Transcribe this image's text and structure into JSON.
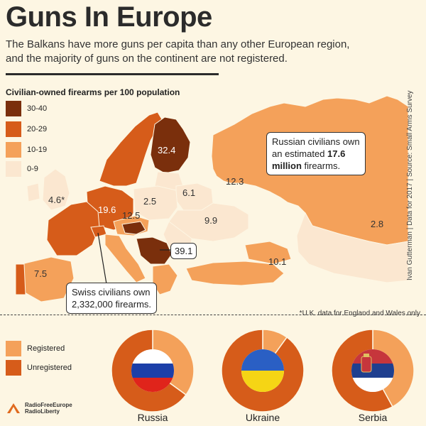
{
  "header": {
    "title": "Guns In Europe",
    "subtitle_line1": "The Balkans have more guns per capita than any other European region,",
    "subtitle_line2": "and the majority of guns on the continent are not registered."
  },
  "legend": {
    "title": "Civilian-owned firearms per 100 population",
    "items": [
      {
        "label": "30-40",
        "color": "#7a2f0c"
      },
      {
        "label": "20-29",
        "color": "#d65c1a"
      },
      {
        "label": "10-19",
        "color": "#f4a15a"
      },
      {
        "label": "0-9",
        "color": "#fbe7d0"
      }
    ]
  },
  "map_values": {
    "finland": "32.4",
    "russia": "12.3",
    "uk": "4.6*",
    "germany": "19.6",
    "poland": "2.5",
    "belarus": "6.1",
    "austria": "12.5",
    "ukraine": "9.9",
    "serbia": "39.1",
    "turkey": "10.1",
    "portugal": "7.5",
    "kazakhstan": "2.8"
  },
  "callouts": {
    "russia_pre": "Russian civilians own",
    "russia_mid_pre": "an estimated ",
    "russia_bold1": "17.6",
    "russia_bold2": "million",
    "russia_post": " firearms.",
    "swiss_line1": "Swiss civilians own",
    "swiss_line2": "2,332,000 firearms."
  },
  "source": "Ivan Gutterman | Data for 2017 | Source: Small Arms Survey",
  "footnote": "*U.K. data for England and Wales only.",
  "registration_legend": [
    {
      "label": "Registered",
      "color": "#f4a15a"
    },
    {
      "label": "Unregistered",
      "color": "#d65c1a"
    }
  ],
  "chart_data": {
    "type": "pie",
    "series_labels": [
      "Registered",
      "Unregistered"
    ],
    "charts": [
      {
        "country": "Russia",
        "registered": 0.35,
        "unregistered": 0.65
      },
      {
        "country": "Ukraine",
        "registered": 0.1,
        "unregistered": 0.9
      },
      {
        "country": "Serbia",
        "registered": 0.42,
        "unregistered": 0.58
      }
    ]
  },
  "logo": {
    "line1": "RadioFreeEurope",
    "line2": "RadioLiberty"
  }
}
